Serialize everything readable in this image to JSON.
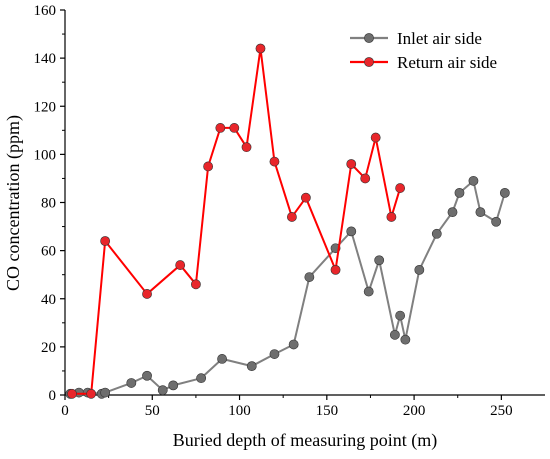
{
  "chart_data": {
    "type": "line",
    "xlabel": "Buried depth of measuring point (m)",
    "ylabel": "CO concentration (ppm)",
    "xlim": [
      0,
      275
    ],
    "ylim": [
      0,
      160
    ],
    "xticks": [
      0,
      50,
      100,
      150,
      200,
      250
    ],
    "yticks": [
      0,
      20,
      40,
      60,
      80,
      100,
      120,
      140,
      160
    ],
    "grid": false,
    "legend_position": "top-right",
    "series": [
      {
        "name": "Inlet air side",
        "color": "#808080",
        "marker_color": "#6e6e6e",
        "x": [
          3,
          8,
          13,
          21,
          23,
          38,
          47,
          56,
          62,
          78,
          90,
          107,
          120,
          131,
          140,
          155,
          164,
          174,
          180,
          189,
          192,
          195,
          203,
          213,
          222,
          226,
          234,
          238,
          247,
          252
        ],
        "y": [
          0.5,
          1,
          1,
          0.5,
          1,
          5,
          8,
          2,
          4,
          7,
          15,
          12,
          17,
          21,
          49,
          61,
          68,
          43,
          56,
          25,
          33,
          23,
          52,
          67,
          76,
          84,
          89,
          76,
          72,
          84
        ]
      },
      {
        "name": "Return air side",
        "color": "#ff0000",
        "marker_color": "#e8262b",
        "x": [
          4,
          15,
          23,
          47,
          66,
          75,
          82,
          89,
          97,
          104,
          112,
          120,
          130,
          138,
          155,
          164,
          172,
          178,
          187,
          192
        ],
        "y": [
          0.5,
          0.5,
          64,
          42,
          54,
          46,
          95,
          111,
          111,
          103,
          144,
          97,
          74,
          82,
          52,
          96,
          90,
          107,
          74,
          86
        ]
      }
    ]
  }
}
